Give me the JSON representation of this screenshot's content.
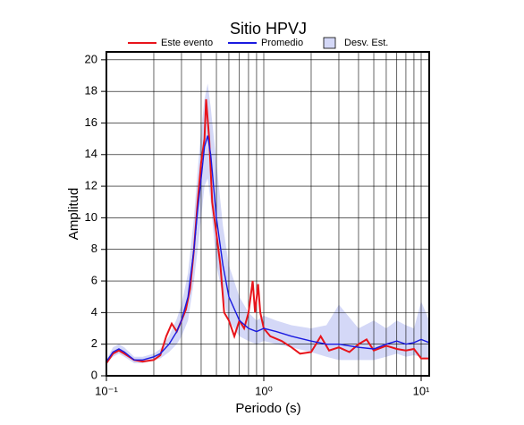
{
  "chart_data": {
    "type": "line",
    "title": "Sitio HPVJ",
    "xlabel": "Periodo (s)",
    "ylabel": "Amplitud",
    "xscale": "log",
    "xlim": [
      0.1,
      11.25
    ],
    "ylim": [
      0,
      20.5
    ],
    "xticks": [
      {
        "value": 0.1,
        "label": "10⁻¹"
      },
      {
        "value": 1,
        "label": "10⁰"
      },
      {
        "value": 10,
        "label": "10¹"
      }
    ],
    "yticks": [
      0,
      2,
      4,
      6,
      8,
      10,
      12,
      14,
      16,
      18,
      20
    ],
    "grid": true,
    "band": {
      "name": "Desv. Est.",
      "color": "#d4d8f7",
      "x": [
        0.1,
        0.11,
        0.12,
        0.13,
        0.15,
        0.17,
        0.2,
        0.22,
        0.25,
        0.28,
        0.3,
        0.33,
        0.36,
        0.38,
        0.4,
        0.42,
        0.44,
        0.46,
        0.5,
        0.55,
        0.6,
        0.7,
        0.8,
        0.9,
        1.0,
        1.2,
        1.5,
        2,
        2.5,
        3,
        4,
        5,
        6,
        7,
        8,
        9,
        10,
        11.25
      ],
      "upper": [
        1.0,
        1.8,
        2.0,
        1.8,
        1.2,
        1.2,
        1.4,
        1.7,
        2.5,
        3.6,
        4.5,
        6.5,
        10,
        13,
        15.5,
        17.5,
        18.5,
        17,
        13.5,
        9.5,
        7,
        5,
        4,
        3.5,
        3.8,
        3.5,
        3.2,
        3.0,
        3.2,
        4.5,
        3.0,
        3.5,
        3.0,
        3.5,
        3.2,
        3.0,
        4.7,
        3.5
      ],
      "lower": [
        0.8,
        1.2,
        1.4,
        1.2,
        0.8,
        0.8,
        1.0,
        1.1,
        1.5,
        2.0,
        2.5,
        3.5,
        6,
        8,
        10,
        12,
        12.5,
        11,
        7,
        5,
        3.5,
        2.5,
        2.2,
        2.0,
        2.2,
        2.0,
        1.8,
        1.5,
        1.2,
        1.0,
        1.0,
        1.0,
        1.2,
        1.4,
        1.2,
        1.3,
        1.2,
        1.0
      ]
    },
    "series": [
      {
        "name": "Este evento",
        "color": "#e8141b",
        "x": [
          0.1,
          0.11,
          0.12,
          0.13,
          0.15,
          0.17,
          0.2,
          0.22,
          0.24,
          0.26,
          0.28,
          0.3,
          0.32,
          0.34,
          0.36,
          0.38,
          0.4,
          0.42,
          0.43,
          0.45,
          0.47,
          0.5,
          0.53,
          0.56,
          0.6,
          0.65,
          0.7,
          0.75,
          0.8,
          0.85,
          0.88,
          0.92,
          0.95,
          1.0,
          1.1,
          1.3,
          1.5,
          1.7,
          2,
          2.3,
          2.6,
          3,
          3.5,
          4,
          4.5,
          5,
          6,
          7,
          8,
          9,
          10,
          11.25
        ],
        "values": [
          0.8,
          1.4,
          1.6,
          1.4,
          1.0,
          0.9,
          1.0,
          1.3,
          2.5,
          3.3,
          2.8,
          3.5,
          4.2,
          5.5,
          8,
          11,
          13.5,
          15,
          17.5,
          15,
          11,
          9,
          7,
          4,
          3.5,
          2.5,
          3.5,
          3,
          4,
          6,
          4,
          5.8,
          4,
          3,
          2.5,
          2.2,
          1.8,
          1.4,
          1.5,
          2.5,
          1.6,
          1.8,
          1.5,
          2.0,
          2.3,
          1.6,
          1.9,
          1.7,
          1.6,
          1.7,
          1.1,
          1.1
        ]
      },
      {
        "name": "Promedio",
        "color": "#1a1ae0",
        "x": [
          0.1,
          0.11,
          0.12,
          0.13,
          0.15,
          0.17,
          0.2,
          0.22,
          0.25,
          0.28,
          0.3,
          0.33,
          0.36,
          0.38,
          0.4,
          0.42,
          0.44,
          0.46,
          0.5,
          0.55,
          0.6,
          0.7,
          0.8,
          0.9,
          1.0,
          1.2,
          1.5,
          2,
          2.5,
          3,
          4,
          5,
          6,
          7,
          8,
          9,
          10,
          11.25
        ],
        "values": [
          0.9,
          1.5,
          1.7,
          1.5,
          1.0,
          1.0,
          1.2,
          1.4,
          2.0,
          2.8,
          3.5,
          5,
          8,
          10.5,
          12.5,
          14.5,
          15.2,
          14,
          10,
          7,
          5,
          3.5,
          3,
          2.8,
          3.0,
          2.8,
          2.5,
          2.2,
          2.0,
          2.0,
          1.8,
          1.7,
          2.0,
          2.2,
          2.0,
          2.1,
          2.3,
          2.1
        ]
      }
    ]
  }
}
